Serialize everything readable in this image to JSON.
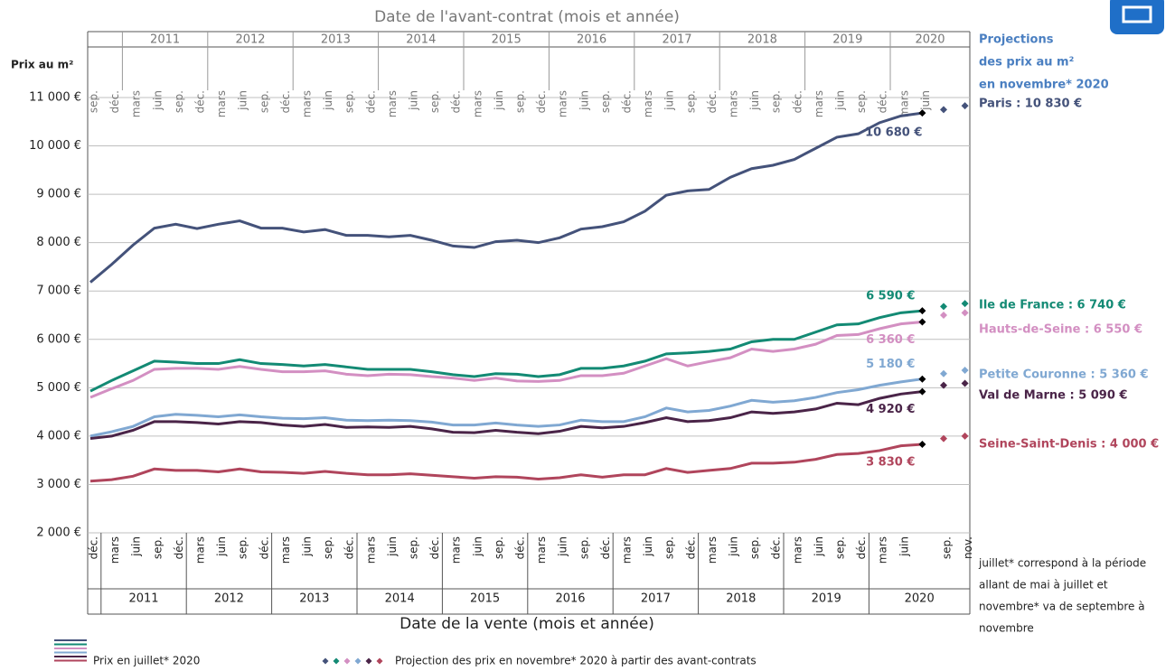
{
  "chart_data": {
    "type": "line",
    "top_axis_title": "Date de l'avant-contrat (mois et année)",
    "top_categories": [
      "sep.",
      "déc.",
      "mars",
      "juin",
      "sep.",
      "déc.",
      "mars",
      "juin",
      "sep.",
      "déc.",
      "mars",
      "juin",
      "sep.",
      "déc.",
      "mars",
      "juin",
      "sep.",
      "déc.",
      "mars",
      "juin",
      "sep.",
      "déc.",
      "mars",
      "juin",
      "sep.",
      "déc.",
      "mars",
      "juin",
      "sep.",
      "déc.",
      "mars",
      "juin",
      "sep.",
      "déc.",
      "mars",
      "juin",
      "sep.",
      "déc.",
      "mars",
      "juin"
    ],
    "top_years": [
      "2011",
      "2012",
      "2013",
      "2014",
      "2015",
      "2016",
      "2017",
      "2018",
      "2019",
      "2020"
    ],
    "x_axis_title": "Date de la vente (mois et année)",
    "categories": [
      "déc.",
      "mars",
      "juin",
      "sep.",
      "déc.",
      "mars",
      "juin",
      "sep.",
      "déc.",
      "mars",
      "juin",
      "sep.",
      "déc.",
      "mars",
      "juin",
      "sep.",
      "déc.",
      "mars",
      "juin",
      "sep.",
      "déc.",
      "mars",
      "juin",
      "sep.",
      "déc.",
      "mars",
      "juin",
      "sep.",
      "déc.",
      "mars",
      "juin",
      "sep.",
      "déc.",
      "mars",
      "juin",
      "sep.",
      "déc.",
      "mars",
      "juin",
      null,
      "sep.",
      "nov."
    ],
    "years": [
      "2011",
      "2012",
      "2013",
      "2014",
      "2015",
      "2016",
      "2017",
      "2018",
      "2019",
      "2020"
    ],
    "y_axis_title": "Prix au m²",
    "ylim": [
      2000,
      11000
    ],
    "yticks": [
      {
        "value": 2000,
        "label": "2 000 €"
      },
      {
        "value": 3000,
        "label": "3 000 €"
      },
      {
        "value": 4000,
        "label": "4 000 €"
      },
      {
        "value": 5000,
        "label": "5 000 €"
      },
      {
        "value": 6000,
        "label": "6 000 €"
      },
      {
        "value": 7000,
        "label": "7 000 €"
      },
      {
        "value": 8000,
        "label": "8 000 €"
      },
      {
        "value": 9000,
        "label": "9 000 €"
      },
      {
        "value": 10000,
        "label": "10 000 €"
      },
      {
        "value": 11000,
        "label": "11 000 €"
      }
    ],
    "grid": true,
    "projection_title": [
      "Projections",
      "des prix au m²",
      "en novembre* 2020"
    ],
    "series": [
      {
        "name": "Paris : 10 830 €",
        "color": "#44527a",
        "values": [
          7180,
          7550,
          7950,
          8300,
          8380,
          8290,
          8380,
          8450,
          8300,
          8300,
          8220,
          8270,
          8150,
          8150,
          8120,
          8150,
          8050,
          7930,
          7900,
          8020,
          8050,
          8000,
          8100,
          8280,
          8330,
          8430,
          8650,
          8980,
          9070,
          9100,
          9350,
          9530,
          9600,
          9720,
          9950,
          10180,
          10250,
          10480,
          10620,
          10680,
          null,
          null
        ],
        "value_labels": [
          null,
          null,
          null,
          null,
          null,
          null,
          null,
          null,
          null,
          null,
          null,
          null,
          null,
          null,
          null,
          null,
          null,
          null,
          null,
          null,
          null,
          null,
          null,
          null,
          null,
          null,
          null,
          null,
          null,
          null,
          null,
          null,
          null,
          null,
          null,
          null,
          null,
          null,
          null,
          "10 680 €",
          null,
          null
        ],
        "projection": [
          null,
          null,
          null,
          null,
          null,
          null,
          null,
          null,
          null,
          null,
          null,
          null,
          null,
          null,
          null,
          null,
          null,
          null,
          null,
          null,
          null,
          null,
          null,
          null,
          null,
          null,
          null,
          null,
          null,
          null,
          null,
          null,
          null,
          null,
          null,
          null,
          null,
          null,
          null,
          10680,
          10750,
          10830
        ]
      },
      {
        "name": "Ile de France : 6 740 €",
        "color": "#138a74",
        "values": [
          4930,
          5150,
          5350,
          5550,
          5530,
          5500,
          5500,
          5580,
          5500,
          5480,
          5450,
          5480,
          5430,
          5380,
          5380,
          5380,
          5330,
          5270,
          5230,
          5290,
          5280,
          5230,
          5270,
          5400,
          5400,
          5450,
          5550,
          5700,
          5720,
          5750,
          5800,
          5950,
          6000,
          6000,
          6150,
          6300,
          6320,
          6450,
          6550,
          6590,
          null,
          null
        ],
        "value_labels": [
          null,
          null,
          null,
          null,
          null,
          null,
          null,
          null,
          null,
          null,
          null,
          null,
          null,
          null,
          null,
          null,
          null,
          null,
          null,
          null,
          null,
          null,
          null,
          null,
          null,
          null,
          null,
          null,
          null,
          null,
          null,
          null,
          null,
          null,
          null,
          null,
          null,
          null,
          null,
          "6 590 €",
          null,
          null
        ],
        "projection": [
          null,
          null,
          null,
          null,
          null,
          null,
          null,
          null,
          null,
          null,
          null,
          null,
          null,
          null,
          null,
          null,
          null,
          null,
          null,
          null,
          null,
          null,
          null,
          null,
          null,
          null,
          null,
          null,
          null,
          null,
          null,
          null,
          null,
          null,
          null,
          null,
          null,
          null,
          null,
          6590,
          6680,
          6740
        ]
      },
      {
        "name": "Hauts-de-Seine : 6 550 €",
        "color": "#d38fc2",
        "values": [
          4800,
          4980,
          5150,
          5380,
          5400,
          5400,
          5380,
          5440,
          5380,
          5330,
          5330,
          5350,
          5280,
          5250,
          5280,
          5270,
          5230,
          5200,
          5150,
          5200,
          5140,
          5130,
          5150,
          5250,
          5250,
          5300,
          5450,
          5600,
          5450,
          5540,
          5620,
          5800,
          5750,
          5800,
          5900,
          6080,
          6100,
          6220,
          6320,
          6360,
          null,
          null
        ],
        "value_labels": [
          null,
          null,
          null,
          null,
          null,
          null,
          null,
          null,
          null,
          null,
          null,
          null,
          null,
          null,
          null,
          null,
          null,
          null,
          null,
          null,
          null,
          null,
          null,
          null,
          null,
          null,
          null,
          null,
          null,
          null,
          null,
          null,
          null,
          null,
          null,
          null,
          null,
          null,
          null,
          "6 360 €",
          null,
          null
        ],
        "projection": [
          null,
          null,
          null,
          null,
          null,
          null,
          null,
          null,
          null,
          null,
          null,
          null,
          null,
          null,
          null,
          null,
          null,
          null,
          null,
          null,
          null,
          null,
          null,
          null,
          null,
          null,
          null,
          null,
          null,
          null,
          null,
          null,
          null,
          null,
          null,
          null,
          null,
          null,
          null,
          6360,
          6500,
          6550
        ]
      },
      {
        "name": "Petite Couronne : 5 360 €",
        "color": "#80a8d2",
        "values": [
          4000,
          4090,
          4200,
          4400,
          4450,
          4430,
          4400,
          4440,
          4400,
          4370,
          4360,
          4380,
          4330,
          4320,
          4330,
          4320,
          4290,
          4230,
          4230,
          4270,
          4230,
          4200,
          4230,
          4330,
          4300,
          4300,
          4400,
          4580,
          4500,
          4530,
          4620,
          4740,
          4700,
          4730,
          4800,
          4900,
          4960,
          5050,
          5120,
          5180,
          null,
          null
        ],
        "value_labels": [
          null,
          null,
          null,
          null,
          null,
          null,
          null,
          null,
          null,
          null,
          null,
          null,
          null,
          null,
          null,
          null,
          null,
          null,
          null,
          null,
          null,
          null,
          null,
          null,
          null,
          null,
          null,
          null,
          null,
          null,
          null,
          null,
          null,
          null,
          null,
          null,
          null,
          null,
          null,
          "5 180 €",
          null,
          null
        ],
        "projection": [
          null,
          null,
          null,
          null,
          null,
          null,
          null,
          null,
          null,
          null,
          null,
          null,
          null,
          null,
          null,
          null,
          null,
          null,
          null,
          null,
          null,
          null,
          null,
          null,
          null,
          null,
          null,
          null,
          null,
          null,
          null,
          null,
          null,
          null,
          null,
          null,
          null,
          null,
          null,
          5180,
          5290,
          5360
        ]
      },
      {
        "name": "Val de Marne : 5 090 €",
        "color": "#4a2448",
        "values": [
          3950,
          4000,
          4120,
          4300,
          4300,
          4280,
          4250,
          4300,
          4280,
          4230,
          4200,
          4240,
          4180,
          4190,
          4180,
          4200,
          4150,
          4080,
          4070,
          4120,
          4080,
          4050,
          4100,
          4200,
          4170,
          4200,
          4280,
          4380,
          4300,
          4320,
          4380,
          4500,
          4470,
          4500,
          4560,
          4680,
          4650,
          4780,
          4870,
          4920,
          null,
          null
        ],
        "value_labels": [
          null,
          null,
          null,
          null,
          null,
          null,
          null,
          null,
          null,
          null,
          null,
          null,
          null,
          null,
          null,
          null,
          null,
          null,
          null,
          null,
          null,
          null,
          null,
          null,
          null,
          null,
          null,
          null,
          null,
          null,
          null,
          null,
          null,
          null,
          null,
          null,
          null,
          null,
          null,
          "4 920 €",
          null,
          null
        ],
        "projection": [
          null,
          null,
          null,
          null,
          null,
          null,
          null,
          null,
          null,
          null,
          null,
          null,
          null,
          null,
          null,
          null,
          null,
          null,
          null,
          null,
          null,
          null,
          null,
          null,
          null,
          null,
          null,
          null,
          null,
          null,
          null,
          null,
          null,
          null,
          null,
          null,
          null,
          null,
          null,
          4920,
          5050,
          5090
        ]
      },
      {
        "name": "Seine-Saint-Denis : 4 000 €",
        "color": "#b0455c",
        "values": [
          3070,
          3100,
          3170,
          3320,
          3290,
          3290,
          3260,
          3320,
          3260,
          3250,
          3230,
          3270,
          3230,
          3200,
          3200,
          3220,
          3190,
          3160,
          3130,
          3160,
          3150,
          3110,
          3140,
          3200,
          3150,
          3200,
          3200,
          3330,
          3250,
          3290,
          3330,
          3440,
          3440,
          3460,
          3520,
          3620,
          3640,
          3700,
          3800,
          3830,
          null,
          null
        ],
        "value_labels": [
          null,
          null,
          null,
          null,
          null,
          null,
          null,
          null,
          null,
          null,
          null,
          null,
          null,
          null,
          null,
          null,
          null,
          null,
          null,
          null,
          null,
          null,
          null,
          null,
          null,
          null,
          null,
          null,
          null,
          null,
          null,
          null,
          null,
          null,
          null,
          null,
          null,
          null,
          null,
          "3 830 €",
          null,
          null
        ],
        "projection": [
          null,
          null,
          null,
          null,
          null,
          null,
          null,
          null,
          null,
          null,
          null,
          null,
          null,
          null,
          null,
          null,
          null,
          null,
          null,
          null,
          null,
          null,
          null,
          null,
          null,
          null,
          null,
          null,
          null,
          null,
          null,
          null,
          null,
          null,
          null,
          null,
          null,
          null,
          null,
          3830,
          3950,
          4000
        ]
      }
    ],
    "footnote": [
      "juillet* correspond à la période",
      "allant de mai à juillet et",
      "novembre* va de septembre à",
      "novembre"
    ],
    "legend": {
      "line": "Prix en juillet* 2020",
      "projection": "Projection des prix en novembre* 2020 à partir des avant-contrats"
    }
  }
}
